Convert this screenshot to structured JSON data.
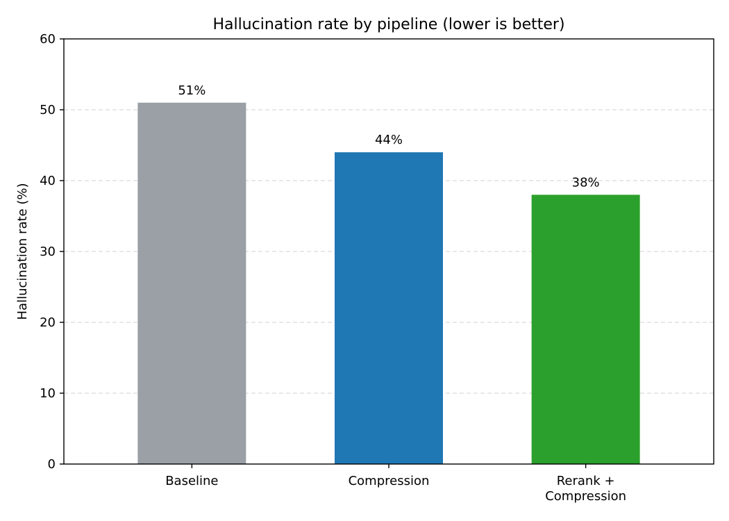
{
  "chart_data": {
    "type": "bar",
    "title": "Hallucination rate by pipeline (lower is better)",
    "xlabel": "",
    "ylabel": "Hallucination rate (%)",
    "ylim": [
      0,
      60
    ],
    "yticks": [
      0,
      10,
      20,
      30,
      40,
      50,
      60
    ],
    "grid": true,
    "categories": [
      [
        "Baseline"
      ],
      [
        "Compression"
      ],
      [
        "Rerank +",
        "Compression"
      ]
    ],
    "values": [
      51,
      44,
      38
    ],
    "value_labels": [
      "51%",
      "44%",
      "38%"
    ],
    "colors": [
      "#9aa0a6",
      "#1f77b4",
      "#2ca02c"
    ]
  }
}
